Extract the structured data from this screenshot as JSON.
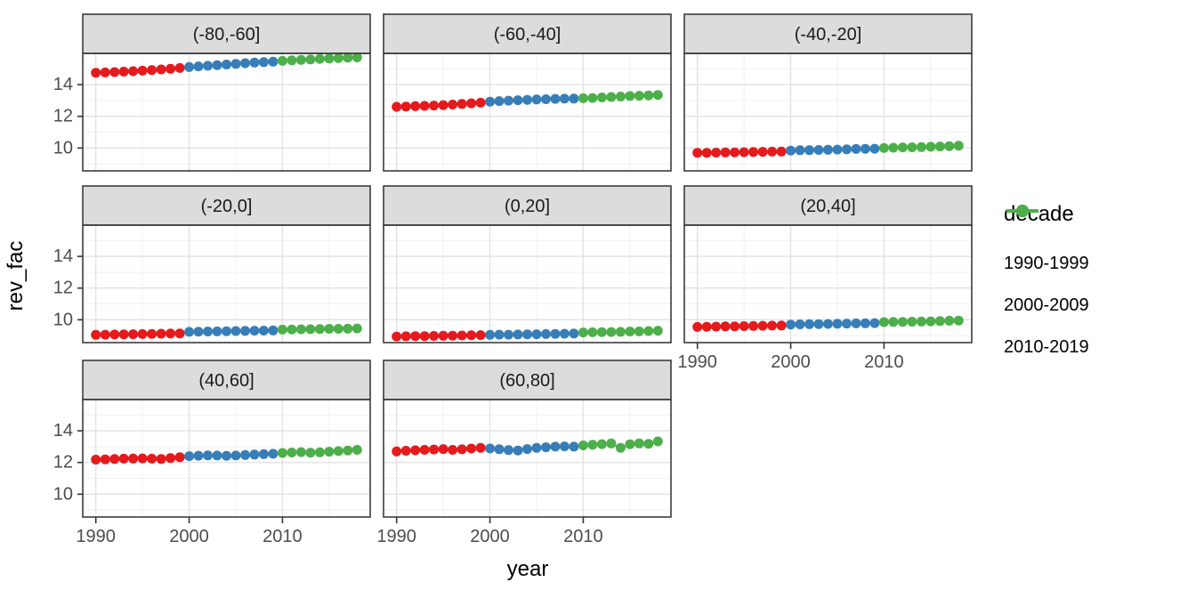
{
  "chart_data": {
    "type": "scatter",
    "title": "",
    "xlabel": "year",
    "ylabel": "rev_fac",
    "grid": true,
    "xlim": [
      1988.6,
      2019.4
    ],
    "ylim": [
      8.56,
      15.97
    ],
    "x_ticks": [
      1990,
      2000,
      2010
    ],
    "x_minor_ticks": [
      1995,
      2005,
      2015
    ],
    "y_ticks": [
      10,
      12,
      14
    ],
    "y_minor_ticks": [
      9,
      11,
      13,
      15
    ],
    "years": [
      1990,
      1991,
      1992,
      1993,
      1994,
      1995,
      1996,
      1997,
      1998,
      1999,
      2000,
      2001,
      2002,
      2003,
      2004,
      2005,
      2006,
      2007,
      2008,
      2009,
      2010,
      2011,
      2012,
      2013,
      2014,
      2015,
      2016,
      2017,
      2018
    ],
    "legend": {
      "title": "decade",
      "position": "right",
      "entries": [
        {
          "label": "1990-1999",
          "color": "#E41A1C",
          "year_start": 1990,
          "year_end": 1999
        },
        {
          "label": "2000-2009",
          "color": "#377EB8",
          "year_start": 2000,
          "year_end": 2009
        },
        {
          "label": "2010-2019",
          "color": "#4DAF4A",
          "year_start": 2010,
          "year_end": 2019
        }
      ]
    },
    "facets": [
      {
        "label": "(-80,-60]",
        "values": [
          14.75,
          14.77,
          14.79,
          14.82,
          14.85,
          14.88,
          14.92,
          14.96,
          15.0,
          15.05,
          15.11,
          15.15,
          15.19,
          15.23,
          15.27,
          15.31,
          15.35,
          15.39,
          15.42,
          15.45,
          15.5,
          15.53,
          15.56,
          15.59,
          15.62,
          15.65,
          15.67,
          15.7,
          15.72
        ]
      },
      {
        "label": "(-60,-40]",
        "values": [
          12.6,
          12.62,
          12.64,
          12.66,
          12.68,
          12.71,
          12.74,
          12.78,
          12.82,
          12.86,
          12.93,
          12.96,
          12.99,
          13.02,
          13.04,
          13.06,
          13.08,
          13.1,
          13.11,
          13.12,
          13.14,
          13.16,
          13.19,
          13.22,
          13.25,
          13.28,
          13.3,
          13.32,
          13.35
        ]
      },
      {
        "label": "(-40,-20]",
        "values": [
          9.7,
          9.7,
          9.71,
          9.72,
          9.73,
          9.74,
          9.75,
          9.76,
          9.77,
          9.78,
          9.84,
          9.86,
          9.87,
          9.88,
          9.89,
          9.9,
          9.92,
          9.94,
          9.95,
          9.96,
          10.0,
          10.02,
          10.04,
          10.05,
          10.06,
          10.08,
          10.1,
          10.12,
          10.15
        ]
      },
      {
        "label": "(-20,0]",
        "values": [
          9.05,
          9.06,
          9.07,
          9.08,
          9.09,
          9.1,
          9.11,
          9.12,
          9.13,
          9.14,
          9.24,
          9.25,
          9.26,
          9.27,
          9.28,
          9.29,
          9.3,
          9.31,
          9.32,
          9.33,
          9.38,
          9.39,
          9.4,
          9.41,
          9.42,
          9.43,
          9.43,
          9.44,
          9.45
        ]
      },
      {
        "label": "(0,20]",
        "values": [
          8.95,
          8.96,
          8.97,
          8.97,
          8.98,
          8.99,
          9.0,
          9.01,
          9.02,
          9.03,
          9.05,
          9.06,
          9.06,
          9.07,
          9.08,
          9.09,
          9.1,
          9.11,
          9.12,
          9.13,
          9.2,
          9.21,
          9.22,
          9.23,
          9.24,
          9.26,
          9.27,
          9.29,
          9.31
        ]
      },
      {
        "label": "(20,40]",
        "values": [
          9.55,
          9.56,
          9.57,
          9.58,
          9.59,
          9.6,
          9.61,
          9.62,
          9.63,
          9.64,
          9.7,
          9.71,
          9.72,
          9.73,
          9.74,
          9.75,
          9.76,
          9.77,
          9.78,
          9.79,
          9.85,
          9.86,
          9.87,
          9.88,
          9.89,
          9.9,
          9.92,
          9.94,
          9.95
        ]
      },
      {
        "label": "(40,60]",
        "values": [
          12.18,
          12.2,
          12.22,
          12.24,
          12.25,
          12.26,
          12.24,
          12.22,
          12.28,
          12.34,
          12.4,
          12.43,
          12.45,
          12.44,
          12.42,
          12.44,
          12.47,
          12.5,
          12.53,
          12.55,
          12.6,
          12.63,
          12.65,
          12.62,
          12.64,
          12.68,
          12.72,
          12.76,
          12.8
        ]
      },
      {
        "label": "(60,80]",
        "values": [
          12.7,
          12.74,
          12.77,
          12.8,
          12.82,
          12.85,
          12.8,
          12.83,
          12.88,
          12.92,
          12.88,
          12.84,
          12.78,
          12.76,
          12.85,
          12.92,
          12.96,
          13.0,
          13.02,
          13.0,
          13.08,
          13.12,
          13.16,
          13.2,
          12.92,
          13.15,
          13.2,
          13.18,
          13.33
        ]
      }
    ],
    "style": {
      "strip_fill": "#DCDCDC",
      "strip_text": "#1A1A1A",
      "panel_border": "#3C3C3C",
      "grid_major": "#E2E2E2",
      "grid_minor": "#EFEFEF",
      "tick_color": "#333333",
      "tick_label_color": "#4D4D4D",
      "panel_fill": "#FFFFFF"
    }
  }
}
